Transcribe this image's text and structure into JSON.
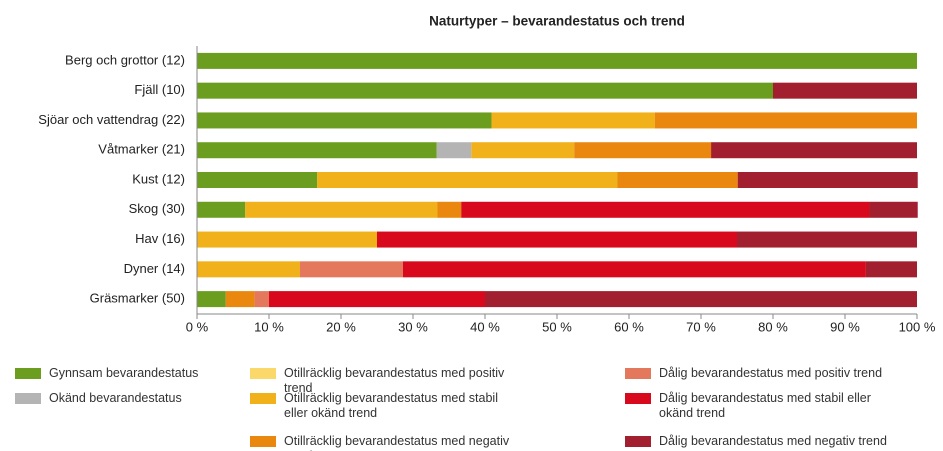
{
  "chart_data": {
    "type": "stacked_barh",
    "title": "Naturtyper – bevarandestatus och trend",
    "categories": [
      "Berg och grottor (12)",
      "Fjäll (10)",
      "Sjöar och vattendrag (22)",
      "Våtmarker (21)",
      "Kust (12)",
      "Skog (30)",
      "Hav (16)",
      "Dyner (14)",
      "Gräsmarker (50)"
    ],
    "series": [
      {
        "name": "Gynnsam bevarandestatus",
        "color": "#6b9e1f",
        "values": [
          100,
          80,
          40.9,
          33.3,
          16.7,
          6.7,
          0,
          0,
          4
        ]
      },
      {
        "name": "Okänd bevarandestatus",
        "color": "#b4b4b4",
        "values": [
          0,
          0,
          0,
          4.8,
          0,
          0,
          0,
          0,
          0
        ]
      },
      {
        "name": "Otillräcklig bevarandestatus med positiv trend",
        "color": "#fbd86a",
        "values": [
          0,
          0,
          0,
          0,
          0,
          0,
          0,
          0,
          0
        ]
      },
      {
        "name": "Otillräcklig bevarandestatus med stabil eller okänd trend",
        "color": "#f0b11a",
        "values": [
          0,
          0,
          22.7,
          14.3,
          41.7,
          26.7,
          25,
          14.3,
          0
        ]
      },
      {
        "name": "Otillräcklig bevarandestatus med negativ trend",
        "color": "#e9870f",
        "values": [
          0,
          0,
          36.4,
          19,
          16.7,
          3.3,
          0,
          0,
          4
        ]
      },
      {
        "name": "Dålig bevarandestatus med positiv trend",
        "color": "#e4785c",
        "values": [
          0,
          0,
          0,
          0,
          0,
          0,
          0,
          14.3,
          2
        ]
      },
      {
        "name": "Dålig bevarandestatus med stabil eller okänd trend",
        "color": "#d8091c",
        "values": [
          0,
          0,
          0,
          0,
          0,
          56.7,
          50,
          64.3,
          30
        ]
      },
      {
        "name": "Dålig bevarandestatus med negativ trend",
        "color": "#a11f2e",
        "values": [
          0,
          20,
          0,
          28.6,
          25,
          6.7,
          25,
          7.1,
          60
        ]
      }
    ],
    "xlim": [
      0,
      100
    ],
    "xticks": [
      {
        "value": 0,
        "label": "0 %"
      },
      {
        "value": 10,
        "label": "10 %"
      },
      {
        "value": 20,
        "label": "20 %"
      },
      {
        "value": 30,
        "label": "30 %"
      },
      {
        "value": 40,
        "label": "40 %"
      },
      {
        "value": 50,
        "label": "50 %"
      },
      {
        "value": 60,
        "label": "60 %"
      },
      {
        "value": 70,
        "label": "70 %"
      },
      {
        "value": 80,
        "label": "80 %"
      },
      {
        "value": 90,
        "label": "90 %"
      },
      {
        "value": 100,
        "label": "100 %"
      }
    ]
  }
}
